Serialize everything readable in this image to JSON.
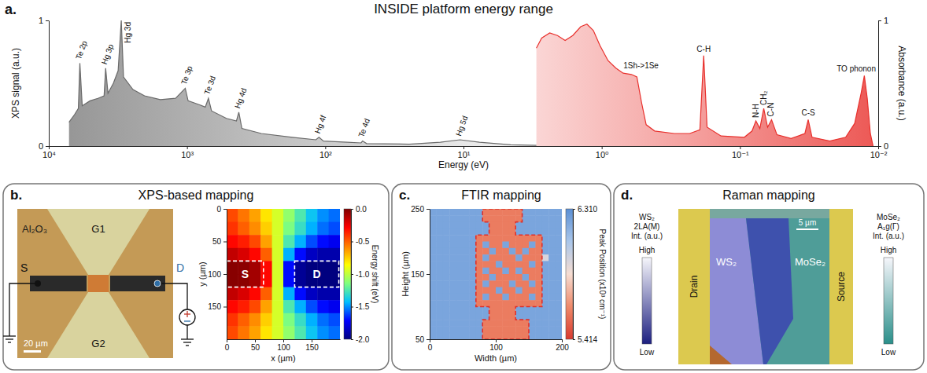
{
  "chart_data": [
    {
      "type": "line",
      "panel": "a.",
      "title": "INSIDE platform energy range",
      "log": "x",
      "x_label": "Energy (eV)",
      "y_label": "XPS signal (a.u.)",
      "y2_label": "Absorbance (a.u.)",
      "xlim": [
        10000,
        0.01
      ],
      "xticks": [
        {
          "value": 10000,
          "label": "10⁴"
        },
        {
          "value": 1000,
          "label": "10³"
        },
        {
          "value": 100,
          "label": "10²"
        },
        {
          "value": 10,
          "label": "10¹"
        },
        {
          "value": 1,
          "label": "10⁰"
        },
        {
          "value": 0.1,
          "label": "10⁻¹"
        },
        {
          "value": 0.01,
          "label": "10⁻²"
        }
      ],
      "ylim": [
        0,
        1
      ],
      "yticks": [
        0,
        1
      ],
      "y2lim": [
        0,
        1
      ],
      "y2ticks": [
        0,
        1
      ],
      "series": [
        {
          "color": "#6a6a6a",
          "x": [
            7140,
            6520,
            6110,
            5960,
            5730,
            5030,
            4410,
            3980,
            3880,
            3730,
            3410,
            3150,
            2990,
            2880,
            2460,
            2030,
            1560,
            1210,
            1030,
            982,
            818,
            738,
            700,
            665,
            519,
            439,
            422,
            401,
            290,
            173,
            117,
            111,
            103,
            69.5,
            55.1,
            53.7,
            50.2,
            24.7,
            14.7,
            10.6,
            7.67,
            4.56,
            2.97
          ],
          "values": [
            0.19,
            0.25,
            0.3,
            0.66,
            0.32,
            0.36,
            0.38,
            0.4,
            0.62,
            0.42,
            0.5,
            0.6,
            1.0,
            0.55,
            0.45,
            0.4,
            0.37,
            0.38,
            0.46,
            0.36,
            0.33,
            0.31,
            0.38,
            0.28,
            0.22,
            0.2,
            0.27,
            0.14,
            0.1,
            0.07,
            0.05,
            0.07,
            0.04,
            0.03,
            0.025,
            0.04,
            0.02,
            0.015,
            0.03,
            0.05,
            0.03,
            0.01,
            0.005
          ],
          "annotations": [
            {
              "text": "Te 2p",
              "x": 5960,
              "y": 0.66
            },
            {
              "text": "Hg 3p",
              "x": 3880,
              "y": 0.62
            },
            {
              "text": "Hg 3d",
              "x": 2990,
              "y": 1.0
            },
            {
              "text": "Te 3p",
              "x": 1030,
              "y": 0.46
            },
            {
              "text": "Te 3d",
              "x": 700,
              "y": 0.38
            },
            {
              "text": "Hg 4d",
              "x": 422,
              "y": 0.27
            },
            {
              "text": "Hg 4f",
              "x": 111,
              "y": 0.07
            },
            {
              "text": "Te 4d",
              "x": 53.7,
              "y": 0.04
            },
            {
              "text": "Hg 5d",
              "x": 10.6,
              "y": 0.05
            }
          ]
        },
        {
          "color": "#e8302c",
          "axis": "y2",
          "x": [
            2.97,
            2.72,
            2.38,
            2.09,
            1.84,
            1.62,
            1.42,
            1.28,
            1.15,
            1.03,
            0.9,
            0.79,
            0.7,
            0.61,
            0.557,
            0.516,
            0.477,
            0.414,
            0.299,
            0.231,
            0.195,
            0.183,
            0.173,
            0.137,
            0.093,
            0.0818,
            0.0767,
            0.0718,
            0.0673,
            0.0631,
            0.0591,
            0.054,
            0.0427,
            0.0339,
            0.0321,
            0.0301,
            0.0224,
            0.0172,
            0.0148,
            0.0133,
            0.0126,
            0.012,
            0.0114,
            0.0109
          ],
          "values": [
            0.78,
            0.86,
            0.9,
            0.88,
            0.84,
            0.88,
            0.95,
            0.97,
            0.92,
            0.8,
            0.68,
            0.62,
            0.58,
            0.57,
            0.55,
            0.35,
            0.17,
            0.12,
            0.1,
            0.1,
            0.13,
            0.72,
            0.15,
            0.08,
            0.07,
            0.12,
            0.2,
            0.14,
            0.3,
            0.15,
            0.21,
            0.09,
            0.06,
            0.1,
            0.21,
            0.07,
            0.04,
            0.07,
            0.18,
            0.42,
            0.56,
            0.38,
            0.1,
            0
          ],
          "annotations": [
            {
              "text": "1Sh->1Se",
              "x": 0.52,
              "y": 0.55
            },
            {
              "text": "C-H",
              "x": 0.183,
              "y": 0.72
            },
            {
              "text": "N-H",
              "x": 0.0767,
              "y": 0.2
            },
            {
              "text": "CH₂",
              "x": 0.0673,
              "y": 0.3
            },
            {
              "text": "C-N",
              "x": 0.0591,
              "y": 0.21
            },
            {
              "text": "C-S",
              "x": 0.0321,
              "y": 0.21
            },
            {
              "text": "TO phonon",
              "x": 0.0126,
              "y": 0.56
            }
          ]
        }
      ]
    },
    {
      "type": "diagram",
      "panel": "b.",
      "title": "XPS-based mapping",
      "labels": {
        "source": "S",
        "drain": "D",
        "substrate": "Al₂O₃",
        "gate1": "G1",
        "gate2": "G2",
        "scale_bar": "20 µm"
      }
    },
    {
      "type": "heatmap",
      "x_label": "x (µm)",
      "y_label": "y (µm)",
      "xlim": [
        0,
        200
      ],
      "ylim": [
        200,
        0
      ],
      "xticks": [
        0,
        50,
        100,
        150
      ],
      "yticks": [
        0,
        50,
        100,
        150
      ],
      "x_edges": [
        0,
        20,
        40,
        60,
        80,
        100,
        120,
        140,
        160,
        180,
        200
      ],
      "y_edges": [
        0,
        20,
        40,
        60,
        80,
        100,
        120,
        140,
        160,
        180,
        200
      ],
      "cells": [
        [
          -0.45,
          -0.55,
          -0.65,
          -0.8,
          -0.95,
          -1.1,
          -1.25,
          -1.4,
          -1.5,
          -1.55
        ],
        [
          -0.4,
          -0.5,
          -0.6,
          -0.75,
          -0.95,
          -1.15,
          -1.3,
          -1.45,
          -1.55,
          -1.6
        ],
        [
          -0.3,
          -0.35,
          -0.45,
          -0.65,
          -0.95,
          -1.25,
          -1.45,
          -1.6,
          -1.7,
          -1.75
        ],
        [
          -0.15,
          -0.2,
          -0.3,
          -0.5,
          -0.95,
          -1.45,
          -1.7,
          -1.85,
          -1.9,
          -1.9
        ],
        [
          -0.02,
          -0.03,
          -0.08,
          -0.3,
          -0.95,
          -1.7,
          -1.95,
          -2.0,
          -2.0,
          -2.0
        ],
        [
          -0.02,
          -0.03,
          -0.08,
          -0.3,
          -0.95,
          -1.7,
          -1.95,
          -2.0,
          -2.0,
          -2.0
        ],
        [
          -0.15,
          -0.2,
          -0.3,
          -0.5,
          -0.95,
          -1.45,
          -1.7,
          -1.85,
          -1.9,
          -1.9
        ],
        [
          -0.3,
          -0.35,
          -0.45,
          -0.65,
          -0.95,
          -1.25,
          -1.45,
          -1.6,
          -1.7,
          -1.75
        ],
        [
          -0.4,
          -0.5,
          -0.6,
          -0.75,
          -0.95,
          -1.15,
          -1.3,
          -1.45,
          -1.55,
          -1.6
        ],
        [
          -0.45,
          -0.55,
          -0.65,
          -0.8,
          -0.95,
          -1.1,
          -1.25,
          -1.4,
          -1.5,
          -1.55
        ]
      ],
      "colorbar": {
        "label": "Energy shift (eV)",
        "range": [
          -2,
          0
        ],
        "ticks": [
          {
            "value": 0,
            "label": "0.0"
          },
          -0.5,
          {
            "value": -1,
            "label": "-1.0"
          },
          -1.5,
          {
            "value": -2,
            "label": "-2.0"
          }
        ],
        "colors": [
          "#00007f",
          "#0000ff",
          "#00bfff",
          "#7fff7f",
          "#ffff00",
          "#ff7f00",
          "#ff0000",
          "#7f0000"
        ]
      },
      "regions": [
        {
          "label": "S",
          "x": [
            0,
            65
          ],
          "y": [
            80,
            120
          ]
        },
        {
          "label": "D",
          "x": [
            120,
            198
          ],
          "y": [
            80,
            120
          ]
        }
      ]
    },
    {
      "type": "heatmap",
      "panel": "c.",
      "title": "FTIR mapping",
      "x_label": "Width (µm)",
      "y_label": "Height (µm)",
      "xlim": [
        0,
        200
      ],
      "ylim": [
        50,
        250
      ],
      "xticks": [
        0,
        100,
        200
      ],
      "yticks": [
        50,
        150,
        250
      ],
      "x_edges": [
        0,
        10,
        20,
        30,
        40,
        50,
        60,
        70,
        80,
        90,
        100,
        110,
        120,
        130,
        140,
        150,
        160,
        170,
        180,
        190,
        200
      ],
      "y_edges": [
        250,
        240,
        230,
        220,
        210,
        200,
        190,
        180,
        170,
        160,
        150,
        140,
        130,
        120,
        110,
        100,
        90,
        80,
        70,
        60,
        50
      ],
      "cells": [
        [
          6.22,
          6.22,
          6.22,
          6.22,
          6.22,
          6.22,
          6.22,
          6.22,
          5.6,
          5.6,
          5.6,
          5.6,
          5.6,
          5.6,
          6.22,
          6.22,
          6.22,
          6.22,
          6.22,
          6.22
        ],
        [
          6.22,
          6.22,
          6.22,
          6.22,
          6.22,
          6.22,
          6.22,
          6.22,
          5.6,
          5.6,
          5.6,
          5.6,
          5.6,
          5.6,
          6.22,
          6.22,
          6.22,
          6.22,
          6.22,
          6.22
        ],
        [
          6.22,
          6.22,
          6.22,
          6.22,
          6.22,
          6.22,
          6.22,
          6.22,
          6.22,
          5.6,
          5.6,
          5.6,
          5.6,
          6.22,
          6.22,
          6.22,
          6.22,
          6.22,
          6.22,
          6.22
        ],
        [
          6.22,
          6.22,
          6.22,
          6.22,
          6.22,
          6.22,
          6.22,
          6.22,
          6.22,
          5.6,
          5.6,
          5.6,
          5.6,
          6.22,
          6.22,
          6.22,
          6.22,
          6.22,
          6.22,
          6.22
        ],
        [
          6.22,
          6.22,
          6.22,
          6.22,
          6.22,
          6.22,
          6.22,
          5.6,
          5.6,
          5.6,
          5.6,
          5.6,
          5.6,
          5.6,
          5.6,
          5.6,
          5.6,
          6.22,
          6.22,
          6.22
        ],
        [
          6.22,
          6.22,
          6.22,
          6.22,
          6.22,
          6.22,
          6.22,
          5.6,
          6.22,
          5.6,
          5.6,
          6.22,
          5.6,
          5.6,
          5.6,
          6.22,
          5.6,
          6.22,
          6.22,
          6.22
        ],
        [
          6.22,
          6.22,
          6.22,
          6.22,
          6.22,
          6.22,
          6.22,
          5.6,
          5.6,
          6.22,
          5.6,
          5.6,
          6.22,
          5.6,
          6.22,
          5.6,
          5.6,
          6.22,
          6.22,
          6.22
        ],
        [
          6.22,
          6.22,
          6.22,
          6.22,
          6.22,
          6.22,
          6.22,
          5.6,
          6.22,
          5.6,
          5.6,
          5.6,
          5.6,
          6.22,
          5.6,
          5.6,
          5.6,
          5.95,
          6.22,
          6.22
        ],
        [
          6.22,
          6.22,
          6.22,
          6.22,
          6.22,
          6.22,
          6.22,
          5.6,
          5.6,
          5.6,
          6.22,
          5.6,
          5.6,
          5.6,
          5.6,
          6.22,
          5.6,
          6.22,
          6.22,
          6.22
        ],
        [
          6.22,
          6.22,
          6.22,
          6.22,
          6.22,
          6.22,
          6.22,
          5.6,
          6.22,
          5.6,
          5.6,
          6.22,
          5.6,
          6.22,
          5.6,
          5.6,
          5.6,
          6.22,
          6.22,
          6.22
        ],
        [
          6.22,
          6.22,
          6.22,
          6.22,
          6.22,
          6.22,
          6.22,
          5.6,
          5.6,
          6.22,
          5.6,
          5.6,
          5.6,
          5.6,
          6.22,
          5.6,
          5.6,
          6.22,
          6.22,
          6.22
        ],
        [
          6.22,
          6.22,
          6.22,
          6.22,
          6.22,
          6.22,
          6.22,
          5.6,
          6.22,
          5.6,
          5.6,
          5.6,
          6.22,
          5.6,
          5.6,
          6.22,
          5.6,
          6.22,
          6.22,
          6.22
        ],
        [
          6.22,
          6.22,
          6.22,
          6.22,
          6.22,
          6.22,
          6.22,
          5.6,
          5.6,
          5.6,
          6.22,
          5.6,
          5.6,
          6.22,
          5.6,
          5.6,
          5.6,
          6.22,
          6.22,
          6.22
        ],
        [
          6.22,
          6.22,
          6.22,
          6.22,
          6.22,
          6.22,
          6.22,
          5.6,
          6.22,
          5.6,
          5.6,
          6.22,
          5.6,
          5.6,
          5.6,
          6.22,
          5.6,
          6.22,
          6.22,
          6.22
        ],
        [
          6.22,
          6.22,
          6.22,
          6.22,
          6.22,
          6.22,
          6.22,
          5.6,
          5.6,
          5.6,
          5.6,
          5.6,
          5.6,
          5.6,
          5.6,
          5.6,
          5.6,
          6.22,
          6.22,
          6.22
        ],
        [
          6.22,
          6.22,
          6.22,
          6.22,
          6.22,
          6.22,
          6.22,
          6.22,
          6.22,
          5.6,
          5.6,
          5.6,
          5.6,
          6.22,
          6.22,
          6.22,
          6.22,
          6.22,
          6.22,
          6.22
        ],
        [
          6.22,
          6.22,
          6.22,
          6.22,
          6.22,
          6.22,
          6.22,
          6.22,
          6.22,
          5.6,
          5.6,
          5.6,
          5.6,
          6.22,
          6.22,
          6.22,
          6.22,
          6.22,
          6.22,
          6.22
        ],
        [
          6.22,
          6.22,
          6.22,
          6.22,
          6.22,
          6.22,
          6.22,
          6.22,
          5.6,
          5.6,
          5.6,
          5.6,
          5.6,
          5.6,
          5.6,
          6.22,
          6.22,
          6.22,
          6.22,
          6.22
        ],
        [
          6.22,
          6.22,
          6.22,
          6.22,
          6.22,
          6.22,
          6.22,
          6.22,
          5.6,
          5.6,
          5.6,
          5.6,
          5.6,
          5.6,
          5.6,
          6.22,
          6.22,
          6.22,
          6.22,
          6.22
        ],
        [
          6.22,
          6.22,
          6.22,
          6.22,
          6.22,
          6.22,
          6.22,
          6.22,
          5.6,
          5.6,
          5.6,
          5.6,
          5.6,
          5.6,
          5.6,
          6.22,
          6.22,
          6.22,
          6.22,
          6.22
        ]
      ],
      "colorbar": {
        "label": "Peak Position (x10³ cm⁻¹)",
        "range": [
          5.414,
          6.31
        ],
        "ticks": [
          {
            "value": 6.31,
            "label": "6.310"
          },
          5.414
        ],
        "colors": [
          "#d93a2e",
          "#ef8a6a",
          "#f6ddd2",
          "#a9c6ea",
          "#5b8fd4"
        ]
      },
      "outline": [
        [
          80,
          250
        ],
        [
          140,
          250
        ],
        [
          140,
          230
        ],
        [
          130,
          230
        ],
        [
          130,
          210
        ],
        [
          170,
          210
        ],
        [
          170,
          100
        ],
        [
          130,
          100
        ],
        [
          130,
          80
        ],
        [
          150,
          80
        ],
        [
          150,
          50
        ],
        [
          80,
          50
        ],
        [
          80,
          80
        ],
        [
          90,
          80
        ],
        [
          90,
          100
        ],
        [
          70,
          100
        ],
        [
          70,
          210
        ],
        [
          90,
          210
        ],
        [
          90,
          230
        ],
        [
          80,
          230
        ]
      ]
    },
    {
      "type": "image",
      "panel": "d.",
      "title": "Raman mapping",
      "labels": {
        "drain": "Drain",
        "source": "Source",
        "ws2": "WS₂",
        "mose2": "MoSe₂",
        "scale_bar": "5 µm"
      },
      "colorbars": [
        {
          "label": [
            "WS₂",
            "2LA(M)",
            "Int. (a.u.)"
          ],
          "high": "High",
          "low": "Low",
          "color": "#1d2080"
        },
        {
          "label": [
            "MoSe₂",
            "A₁g(Γ)",
            "Int. (a.u.)"
          ],
          "high": "High",
          "low": "Low",
          "color": "#2a8f8a"
        }
      ]
    }
  ]
}
